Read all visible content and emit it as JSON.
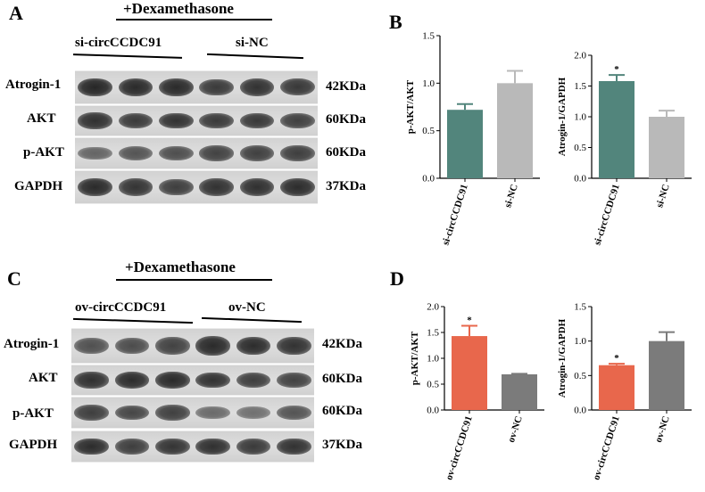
{
  "panels": [
    {
      "id": "A",
      "label": "A",
      "treatment": "+Dexamethasone",
      "groups": [
        "si-circCCDC91",
        "si-NC"
      ],
      "blots": [
        {
          "protein": "Atrogin-1",
          "size": "42KDa",
          "intensity": [
            0.88,
            0.85,
            0.86,
            0.74,
            0.8,
            0.76
          ]
        },
        {
          "protein": "AKT",
          "size": "60KDa",
          "intensity": [
            0.82,
            0.74,
            0.8,
            0.75,
            0.76,
            0.7
          ]
        },
        {
          "protein": "p-AKT",
          "size": "60KDa",
          "intensity": [
            0.45,
            0.55,
            0.6,
            0.68,
            0.7,
            0.72
          ]
        },
        {
          "protein": "GAPDH",
          "size": "37KDa",
          "intensity": [
            0.85,
            0.78,
            0.72,
            0.8,
            0.82,
            0.84
          ]
        }
      ]
    },
    {
      "id": "C",
      "label": "C",
      "treatment": "+Dexamethasone",
      "groups": [
        "ov-circCCDC91",
        "ov-NC"
      ],
      "blots": [
        {
          "protein": "Atrogin-1",
          "size": "42KDa",
          "intensity": [
            0.58,
            0.62,
            0.68,
            0.86,
            0.84,
            0.8
          ]
        },
        {
          "protein": "AKT",
          "size": "60KDa",
          "intensity": [
            0.82,
            0.84,
            0.85,
            0.8,
            0.72,
            0.68
          ]
        },
        {
          "protein": "p-AKT",
          "size": "60KDa",
          "intensity": [
            0.72,
            0.66,
            0.7,
            0.4,
            0.36,
            0.55
          ]
        },
        {
          "protein": "GAPDH",
          "size": "37KDa",
          "intensity": [
            0.84,
            0.72,
            0.78,
            0.82,
            0.74,
            0.8
          ]
        }
      ]
    }
  ],
  "bar_panels": [
    {
      "id": "B",
      "label": "B"
    },
    {
      "id": "D",
      "label": "D"
    }
  ],
  "chart_data": [
    {
      "panel": "B",
      "type": "bar",
      "categories": [
        "si-circCCDC91",
        "si-NC"
      ],
      "values": [
        0.72,
        1.0
      ],
      "errors": [
        0.06,
        0.13
      ],
      "ylabel": "p-AKT/AKT",
      "ylim": [
        0,
        1.5
      ],
      "yticks": [
        "0.0",
        "0.5",
        "1.0",
        "1.5"
      ],
      "significance": [
        "",
        ""
      ],
      "colors": [
        "#52857c",
        "#b9b9b9"
      ]
    },
    {
      "panel": "B",
      "type": "bar",
      "categories": [
        "si-circCCDC91",
        "si-NC"
      ],
      "values": [
        1.58,
        1.0
      ],
      "errors": [
        0.1,
        0.1
      ],
      "ylabel": "Atrogin-1/GAPDH",
      "ylim": [
        0,
        2.0
      ],
      "yticks": [
        "0.0",
        "0.5",
        "1.0",
        "1.5",
        "2.0"
      ],
      "significance": [
        "*",
        ""
      ],
      "colors": [
        "#52857c",
        "#b9b9b9"
      ]
    },
    {
      "panel": "D",
      "type": "bar",
      "categories": [
        "ov-circCCDC91",
        "ov-NC"
      ],
      "values": [
        1.43,
        0.69
      ],
      "errors": [
        0.2,
        0.01
      ],
      "ylabel": "p-AKT/AKT",
      "ylim": [
        0,
        2.0
      ],
      "yticks": [
        "0.0",
        "0.5",
        "1.0",
        "1.5",
        "2.0"
      ],
      "significance": [
        "*",
        ""
      ],
      "colors": [
        "#e8674c",
        "#7b7b7b"
      ]
    },
    {
      "panel": "D",
      "type": "bar",
      "categories": [
        "ov-circCCDC91",
        "ov-NC"
      ],
      "values": [
        0.65,
        1.0
      ],
      "errors": [
        0.02,
        0.13
      ],
      "ylabel": "Atrogin-1/GAPDH",
      "ylim": [
        0,
        1.5
      ],
      "yticks": [
        "0.0",
        "0.5",
        "1.0",
        "1.5"
      ],
      "significance": [
        "*",
        ""
      ],
      "colors": [
        "#e8674c",
        "#7b7b7b"
      ]
    }
  ]
}
